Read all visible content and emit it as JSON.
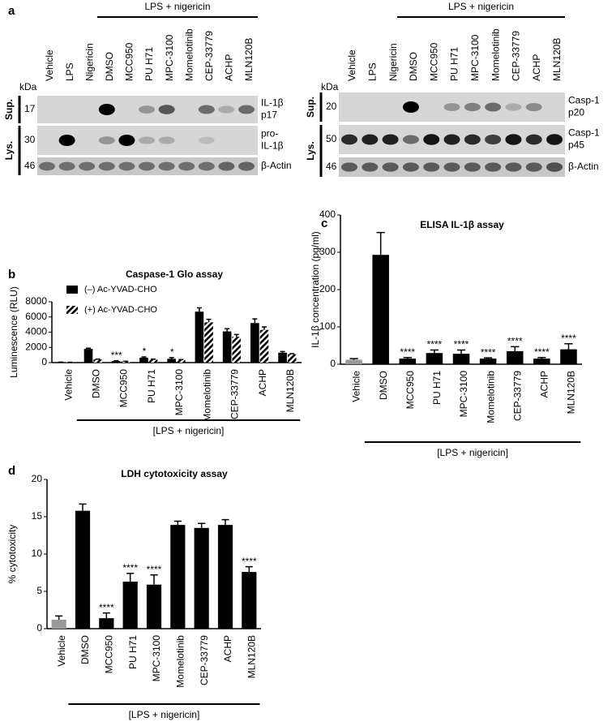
{
  "panel_labels": [
    "a",
    "b",
    "c",
    "d"
  ],
  "blots": [
    {
      "header": "LPS + nigericin",
      "kda_label": "kDa",
      "lanes": [
        "Vehicle",
        "LPS",
        "Nigericin",
        "DMSO",
        "MCC950",
        "PU H71",
        "MPC-3100",
        "Momelotinib",
        "CEP-33779",
        "ACHP",
        "MLN120B"
      ],
      "groups": [
        "Sup.",
        "Lys."
      ],
      "rows": [
        {
          "kda": "17",
          "label": [
            "IL-1β",
            "p17"
          ]
        },
        {
          "kda": "30",
          "label": [
            "pro-",
            "IL-1β"
          ]
        },
        {
          "kda": "46",
          "label": [
            "β-Actin"
          ]
        }
      ]
    },
    {
      "header": "LPS + nigericin",
      "kda_label": "kDa",
      "lanes": [
        "Vehicle",
        "LPS",
        "Nigericin",
        "DMSO",
        "MCC950",
        "PU H71",
        "MPC-3100",
        "Momelotinib",
        "CEP-33779",
        "ACHP",
        "MLN120B"
      ],
      "groups": [
        "Sup.",
        "Lys."
      ],
      "rows": [
        {
          "kda": "20",
          "label": [
            "Casp-1",
            "p20"
          ]
        },
        {
          "kda": "50",
          "label": [
            "Casp-1",
            "p45"
          ]
        },
        {
          "kda": "46",
          "label": [
            "β-Actin"
          ]
        }
      ]
    }
  ],
  "chart_data": [
    {
      "type": "bar",
      "title": "Caspase-1 Glo assay",
      "y_label": "Luminescence (RLU)",
      "bracket_label": "[LPS + nigericin]",
      "categories": [
        "Vehicle",
        "DMSO",
        "MCC950",
        "PU H71",
        "MPC-3100",
        "Momelotinib",
        "CEP-33779",
        "ACHP",
        "MLN120B"
      ],
      "series": [
        {
          "name": "(–) Ac-YVAD-CHO",
          "color": "#000000",
          "hatched": false,
          "values": [
            50,
            1800,
            200,
            650,
            500,
            6700,
            4100,
            5200,
            1300
          ],
          "errors": [
            20,
            100,
            50,
            100,
            150,
            500,
            350,
            550,
            150
          ]
        },
        {
          "name": "(+) Ac-YVAD-CHO",
          "color": "#000000",
          "hatched": true,
          "values": [
            30,
            400,
            150,
            400,
            350,
            5300,
            3400,
            4300,
            1100
          ],
          "errors": [
            10,
            50,
            30,
            50,
            50,
            400,
            300,
            400,
            80
          ]
        }
      ],
      "annotations": [
        null,
        null,
        "***",
        "*",
        "*",
        null,
        null,
        null,
        null
      ],
      "legend": "upper left",
      "ylim": [
        0,
        8000
      ],
      "yticks": [
        0,
        2000,
        4000,
        6000,
        8000
      ]
    },
    {
      "type": "bar",
      "title": "ELISA IL-1β assay",
      "y_label": "IL-1β concentration (pg/ml)",
      "bracket_label": "[LPS + nigericin]",
      "categories": [
        "Vehicle",
        "DMSO",
        "MCC950",
        "PU H71",
        "MPC-3100",
        "Momelotinib",
        "CEP-33779",
        "ACHP",
        "MLN120B"
      ],
      "values": [
        12,
        293,
        15,
        30,
        28,
        15,
        35,
        15,
        40
      ],
      "errors": [
        3,
        60,
        3,
        8,
        10,
        2,
        12,
        3,
        15
      ],
      "colors": [
        "#999999",
        "#000000",
        "#000000",
        "#000000",
        "#000000",
        "#000000",
        "#000000",
        "#000000",
        "#000000"
      ],
      "annotations": [
        null,
        null,
        "****",
        "****",
        "****",
        "****",
        "****",
        "****",
        "****"
      ],
      "ylim": [
        0,
        400
      ],
      "yticks": [
        0,
        100,
        200,
        300,
        400
      ]
    },
    {
      "type": "bar",
      "title": "LDH cytotoxicity assay",
      "y_label": "% cytotoxicity",
      "bracket_label": "[LPS + nigericin]",
      "categories": [
        "Vehicle",
        "DMSO",
        "MCC950",
        "PU H71",
        "MPC-3100",
        "Momelotinib",
        "CEP-33779",
        "ACHP",
        "MLN120B"
      ],
      "values": [
        1.2,
        15.8,
        1.4,
        6.3,
        5.9,
        13.9,
        13.5,
        13.9,
        7.6
      ],
      "errors": [
        0.5,
        0.9,
        0.7,
        1.1,
        1.3,
        0.5,
        0.6,
        0.7,
        0.7
      ],
      "colors": [
        "#999999",
        "#000000",
        "#000000",
        "#000000",
        "#000000",
        "#000000",
        "#000000",
        "#000000",
        "#000000"
      ],
      "annotations": [
        null,
        null,
        "****",
        "****",
        "****",
        null,
        null,
        null,
        "****"
      ],
      "ylim": [
        0,
        20
      ],
      "yticks": [
        0,
        5,
        10,
        15,
        20
      ]
    }
  ]
}
